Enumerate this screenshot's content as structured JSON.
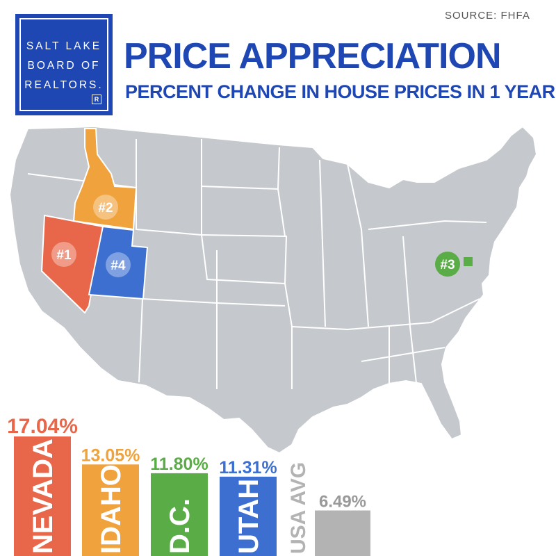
{
  "header": {
    "logo_lines": [
      "SALT LAKE",
      "BOARD OF",
      "REALTORS."
    ],
    "logo_mark": "R",
    "title": "PRICE APPRECIATION",
    "subtitle": "PERCENT CHANGE IN HOUSE PRICES IN 1 YEAR",
    "source": "SOURCE: FHFA"
  },
  "colors": {
    "brand_blue": "#1e47b3",
    "nevada": "#e8674a",
    "idaho": "#f0a23c",
    "dc": "#5aad46",
    "utah": "#3d6fd1",
    "usa_avg": "#b3b3b3",
    "map_gray": "#c5c8cc"
  },
  "map": {
    "markers": [
      {
        "rank": "#1",
        "state": "NEVADA",
        "color": "#e8674a"
      },
      {
        "rank": "#2",
        "state": "IDAHO",
        "color": "#f0a23c"
      },
      {
        "rank": "#3",
        "state": "D.C.",
        "color": "#5aad46"
      },
      {
        "rank": "#4",
        "state": "UTAH",
        "color": "#3d6fd1"
      }
    ]
  },
  "chart_data": {
    "type": "bar",
    "title": "PRICE APPRECIATION",
    "subtitle": "PERCENT CHANGE IN HOUSE PRICES IN 1 YEAR",
    "categories": [
      "NEVADA",
      "IDAHO",
      "D.C.",
      "UTAH",
      "USA AVG"
    ],
    "values": [
      17.04,
      13.05,
      11.8,
      11.31,
      6.49
    ],
    "value_labels": [
      "17.04%",
      "13.05%",
      "11.80%",
      "11.31%",
      "6.49%"
    ],
    "colors": [
      "#e8674a",
      "#f0a23c",
      "#5aad46",
      "#3d6fd1",
      "#b3b3b3"
    ],
    "ylim": [
      0,
      17.04
    ],
    "grid": false,
    "legend": "none",
    "source": "SOURCE: FHFA"
  }
}
